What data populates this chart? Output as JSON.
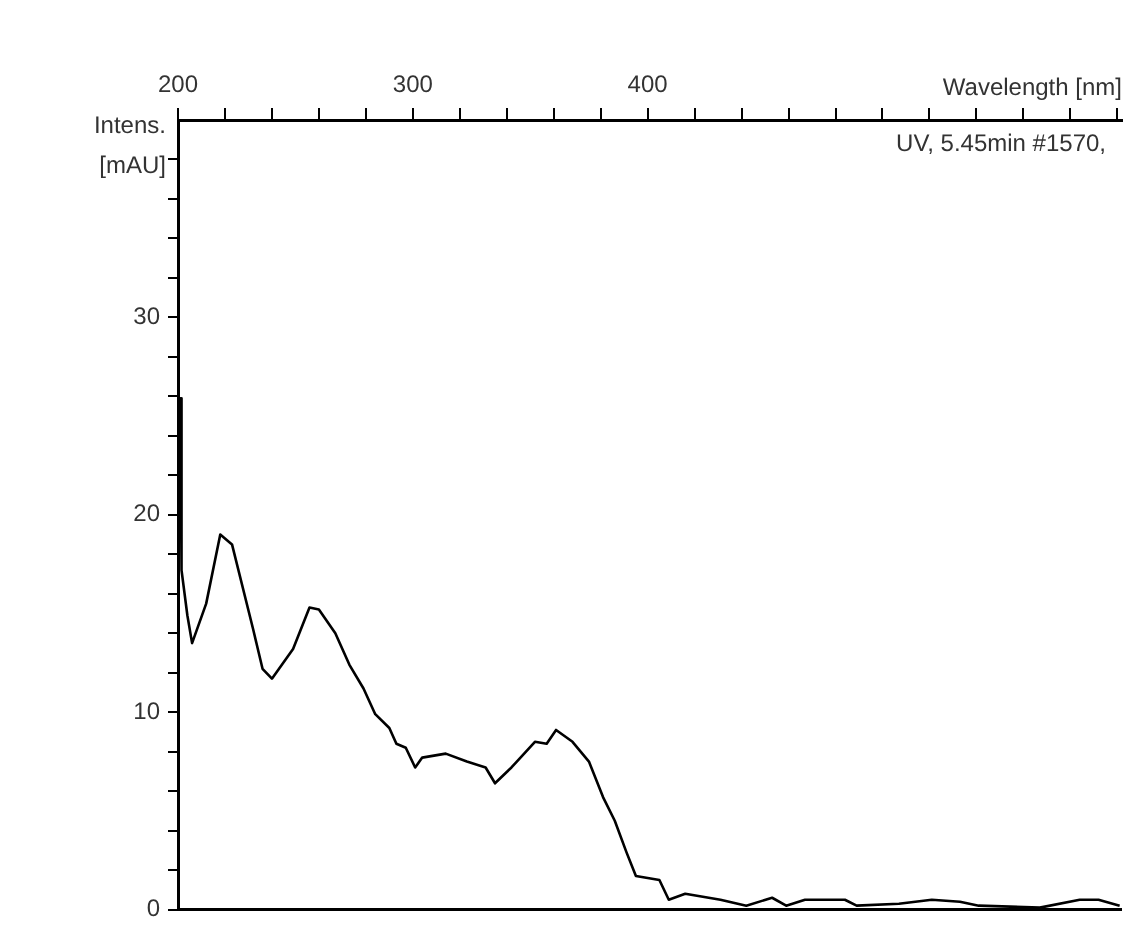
{
  "chart_data": {
    "type": "line",
    "xlabel": "Wavelength [nm]",
    "ylabel": "Intens. [mAU]",
    "annotations": [
      "UV, 5.45min #1570,"
    ],
    "xlim": [
      200,
      602
    ],
    "ylim": [
      0,
      40
    ],
    "xticks": [
      200,
      {
        "value": 220,
        "label": null
      },
      {
        "value": 240,
        "label": null
      },
      {
        "value": 260,
        "label": null
      },
      {
        "value": 280,
        "label": null
      },
      300,
      {
        "value": 320,
        "label": null
      },
      {
        "value": 340,
        "label": null
      },
      {
        "value": 360,
        "label": null
      },
      {
        "value": 380,
        "label": null
      },
      400,
      {
        "value": 420,
        "label": null
      },
      {
        "value": 440,
        "label": null
      },
      {
        "value": 460,
        "label": null
      },
      {
        "value": 480,
        "label": null
      },
      {
        "value": 500,
        "label": null
      },
      {
        "value": 520,
        "label": null
      },
      {
        "value": 540,
        "label": null
      },
      {
        "value": 560,
        "label": null
      },
      {
        "value": 580,
        "label": null
      },
      {
        "value": 600,
        "label": null
      }
    ],
    "yticks": [
      0,
      {
        "value": 2,
        "label": null
      },
      {
        "value": 4,
        "label": null
      },
      {
        "value": 6,
        "label": null
      },
      {
        "value": 8,
        "label": null
      },
      10,
      {
        "value": 12,
        "label": null
      },
      {
        "value": 14,
        "label": null
      },
      {
        "value": 16,
        "label": null
      },
      {
        "value": 18,
        "label": null
      },
      20,
      {
        "value": 22,
        "label": null
      },
      {
        "value": 24,
        "label": null
      },
      {
        "value": 26,
        "label": null
      },
      {
        "value": 28,
        "label": null
      },
      30,
      {
        "value": 32,
        "label": null
      },
      {
        "value": 34,
        "label": null
      },
      {
        "value": 36,
        "label": null
      },
      {
        "value": 38,
        "label": null
      }
    ],
    "grid": false,
    "legend": false,
    "marker": "none",
    "line_style": "solid",
    "series": [
      {
        "color": "#000000",
        "x": [
          200,
          201,
          201.5,
          204,
          206,
          212,
          218,
          223,
          232,
          236,
          240,
          249,
          256,
          260,
          267,
          273,
          279,
          284,
          290,
          293,
          297,
          301,
          304,
          314,
          323,
          331,
          335,
          342,
          352,
          357,
          361,
          368,
          375,
          381,
          386,
          391,
          395,
          405,
          409,
          416,
          431,
          442,
          453,
          459,
          467,
          484,
          489,
          507,
          521,
          533,
          541,
          567,
          584,
          592,
          601
        ],
        "values": [
          17,
          25.9,
          17.2,
          14.9,
          13.5,
          15.5,
          19.0,
          18.5,
          14.2,
          12.2,
          11.7,
          13.2,
          15.3,
          15.2,
          14.0,
          12.4,
          11.2,
          9.9,
          9.2,
          8.4,
          8.2,
          7.2,
          7.7,
          7.9,
          7.5,
          7.2,
          6.4,
          7.2,
          8.5,
          8.4,
          9.1,
          8.5,
          7.5,
          5.7,
          4.5,
          2.9,
          1.7,
          1.5,
          0.5,
          0.8,
          0.5,
          0.2,
          0.6,
          0.2,
          0.5,
          0.5,
          0.2,
          0.3,
          0.5,
          0.4,
          0.2,
          0.1,
          0.5,
          0.5,
          0.2
        ]
      }
    ]
  }
}
